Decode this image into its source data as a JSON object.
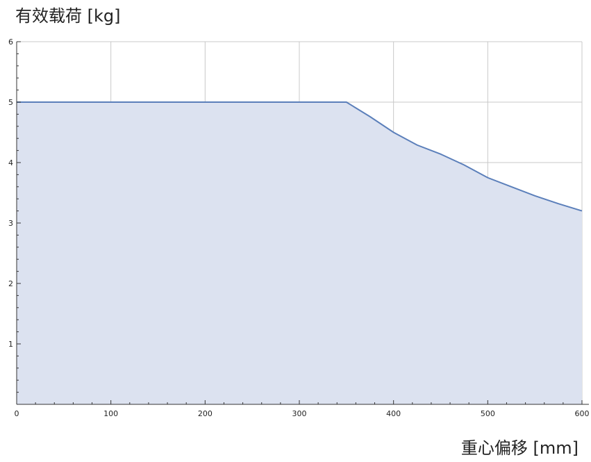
{
  "chart_data": {
    "type": "area",
    "title": "",
    "ylabel": "有效载荷 [kg]",
    "xlabel": "重心偏移 [mm]",
    "xlim": [
      0,
      600
    ],
    "ylim": [
      0,
      6
    ],
    "x_ticks": [
      0,
      100,
      200,
      300,
      400,
      500,
      600
    ],
    "y_ticks": [
      1,
      2,
      3,
      4,
      5,
      6
    ],
    "grid": true,
    "legend": "none",
    "series": [
      {
        "x": [
          0,
          50,
          100,
          150,
          200,
          250,
          300,
          350,
          375,
          400,
          425,
          450,
          475,
          500,
          525,
          550,
          575,
          600
        ],
        "values": [
          5,
          5,
          5,
          5,
          5,
          5,
          5,
          5,
          4.76,
          4.5,
          4.29,
          4.14,
          3.96,
          3.75,
          3.6,
          3.45,
          3.32,
          3.2
        ]
      }
    ],
    "colors": {
      "line": "#5b7fba",
      "fill": "#dce2f0",
      "grid": "#c8c8c8",
      "axis": "#333333"
    }
  }
}
